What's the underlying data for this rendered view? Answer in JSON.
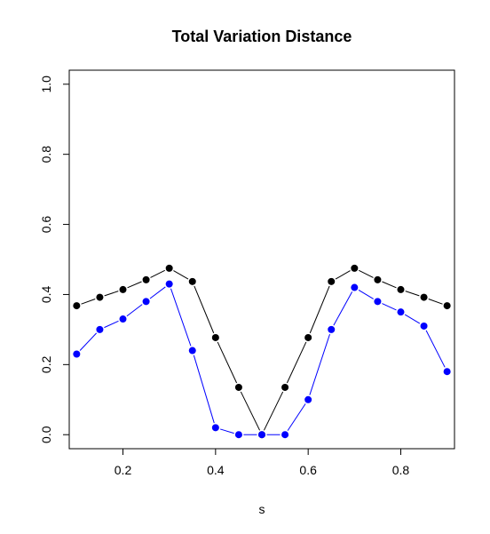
{
  "chart_data": {
    "type": "line",
    "title": "Total Variation Distance",
    "xlabel": "s",
    "ylabel": "",
    "xlim": [
      0.084,
      0.916
    ],
    "ylim": [
      -0.04,
      1.04
    ],
    "xticks": [
      0.2,
      0.4,
      0.6,
      0.8
    ],
    "xtick_labels": [
      "0.2",
      "0.4",
      "0.6",
      "0.8"
    ],
    "yticks": [
      0.0,
      0.2,
      0.4,
      0.6,
      0.8,
      1.0
    ],
    "ytick_labels": [
      "0.0",
      "0.2",
      "0.4",
      "0.6",
      "0.8",
      "1.0"
    ],
    "grid": false,
    "x": [
      0.1,
      0.15,
      0.2,
      0.25,
      0.3,
      0.35,
      0.4,
      0.45,
      0.5,
      0.55,
      0.6,
      0.65,
      0.7,
      0.75,
      0.8,
      0.85,
      0.9
    ],
    "series": [
      {
        "color": "#000000",
        "values": [
          0.368,
          0.392,
          0.414,
          0.442,
          0.475,
          0.437,
          0.277,
          0.135,
          0.0,
          0.135,
          0.277,
          0.437,
          0.475,
          0.442,
          0.414,
          0.392,
          0.368
        ]
      },
      {
        "color": "#0000ff",
        "values": [
          0.23,
          0.3,
          0.33,
          0.38,
          0.43,
          0.24,
          0.02,
          0.0,
          0.0,
          0.0,
          0.1,
          0.3,
          0.42,
          0.38,
          0.35,
          0.31,
          0.18
        ]
      }
    ]
  }
}
